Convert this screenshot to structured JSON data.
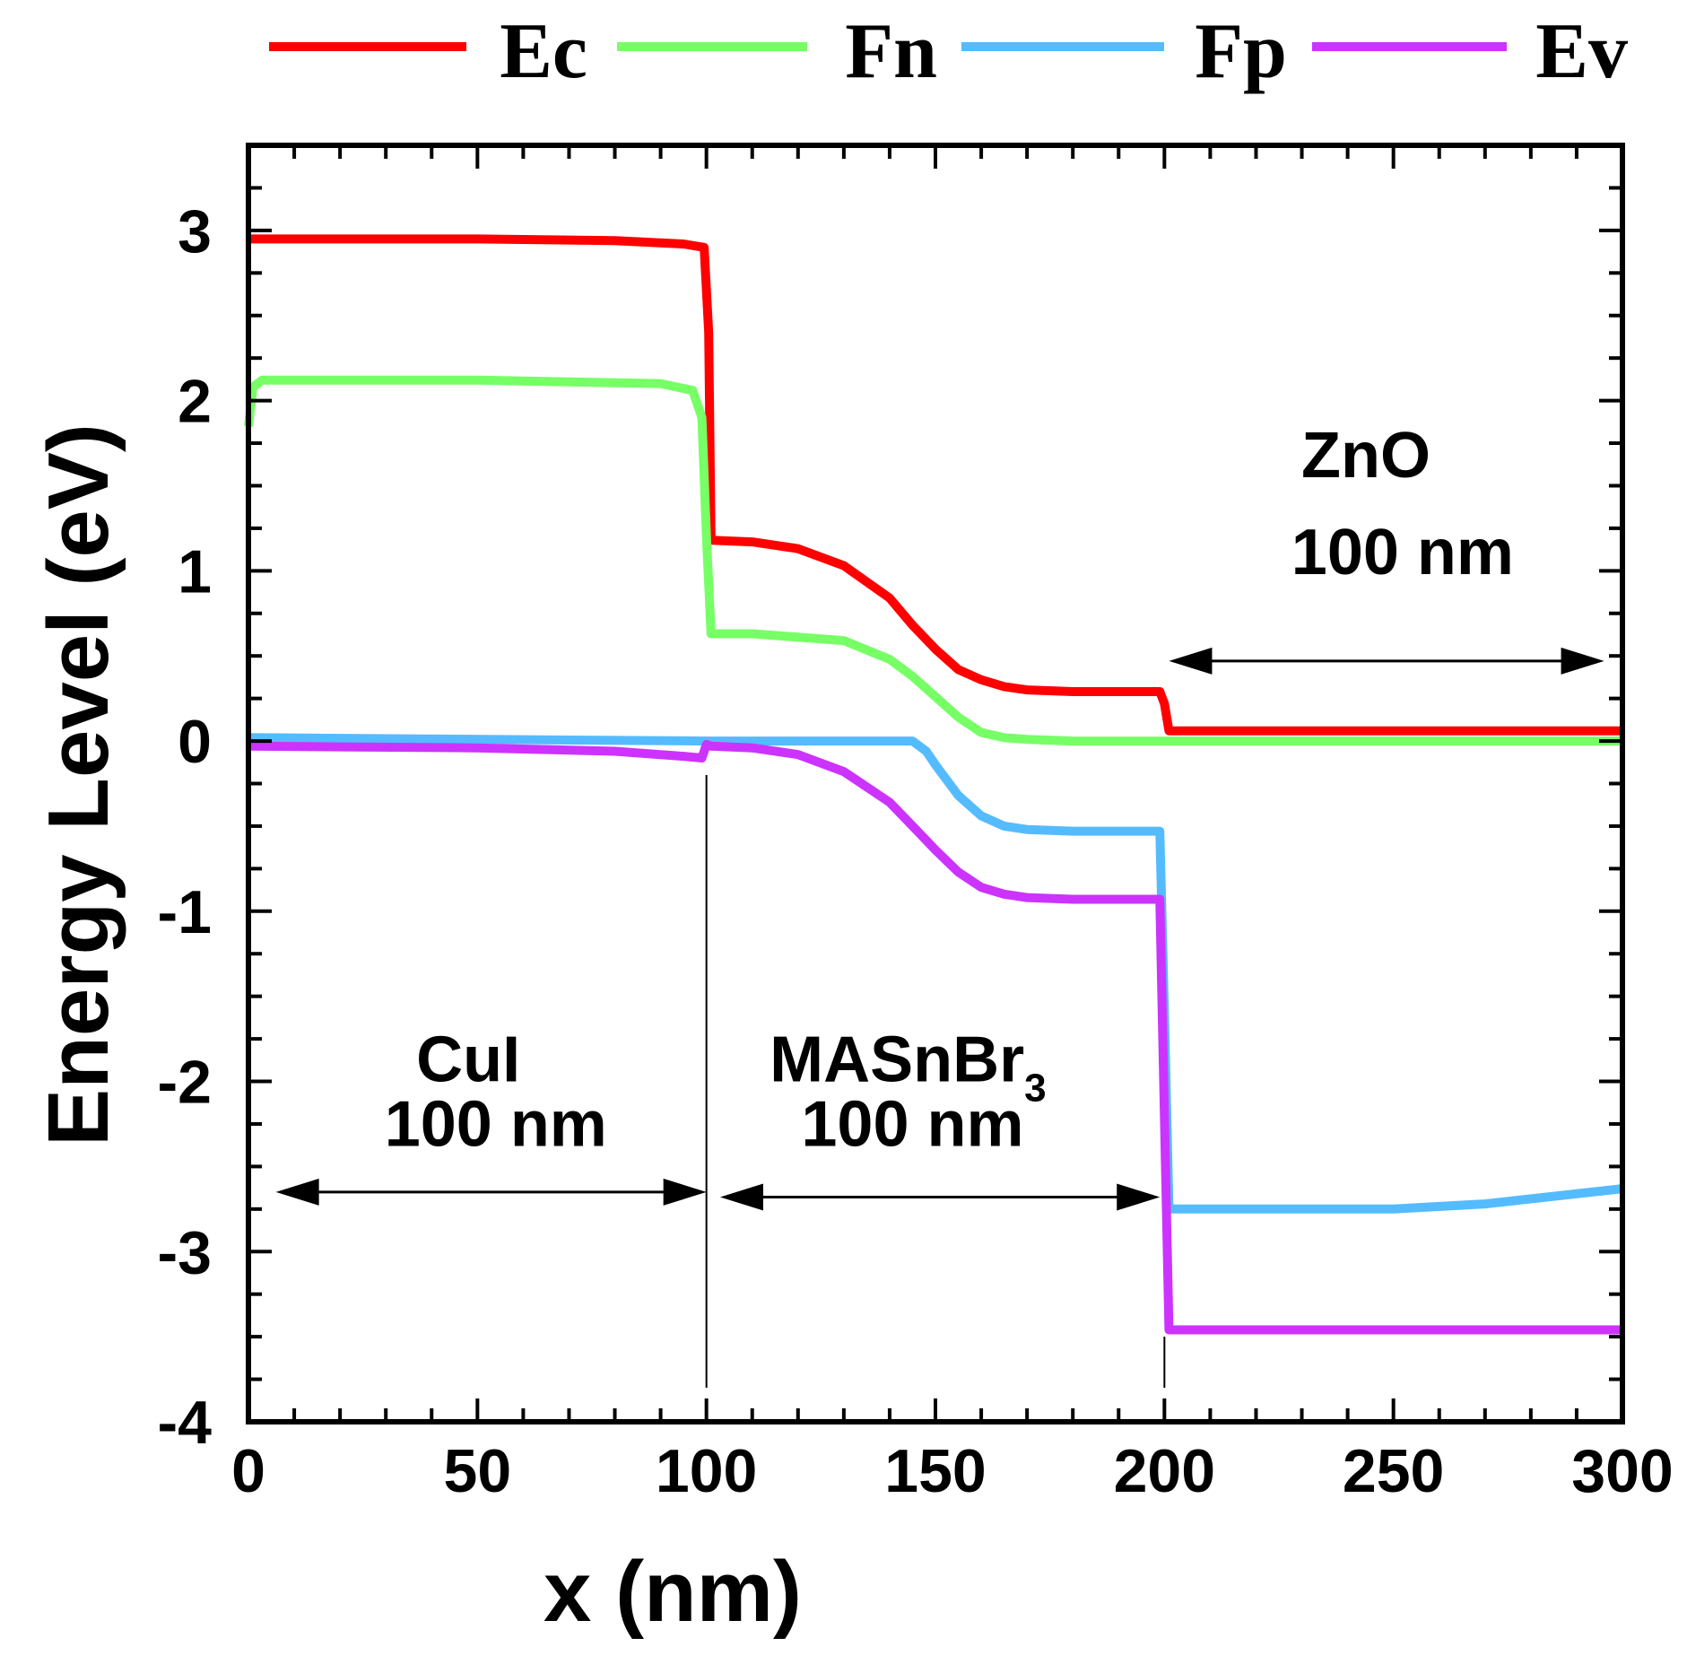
{
  "chart_data": {
    "type": "line",
    "title": "",
    "xlabel": "x (nm)",
    "ylabel": "Energy Level (eV)",
    "xlim": [
      0,
      300
    ],
    "ylim": [
      -4,
      3.5
    ],
    "xticks": [
      "0",
      "50",
      "100",
      "150",
      "200",
      "250",
      "300"
    ],
    "yticks": [
      "3",
      "2",
      "1",
      "0",
      "-1",
      "-2",
      "-3",
      "-4"
    ],
    "legend_position": "top",
    "series": [
      {
        "name": "Ec",
        "color": "#ff0000",
        "x": [
          0,
          50,
          80,
          95,
          99.5,
          100.5,
          101,
          110,
          120,
          130,
          140,
          145,
          150,
          155,
          160,
          165,
          170,
          180,
          190,
          199,
          200,
          201,
          202,
          250,
          300
        ],
        "y": [
          2.95,
          2.95,
          2.94,
          2.92,
          2.9,
          2.4,
          1.18,
          1.17,
          1.13,
          1.03,
          0.84,
          0.68,
          0.54,
          0.42,
          0.36,
          0.32,
          0.3,
          0.29,
          0.29,
          0.29,
          0.22,
          0.06,
          0.06,
          0.06,
          0.06
        ]
      },
      {
        "name": "Fn",
        "color": "#77ff66",
        "x": [
          0,
          1,
          3,
          50,
          90,
          97,
          99,
          100,
          101,
          110,
          130,
          140,
          145,
          150,
          155,
          160,
          165,
          170,
          180,
          200,
          250,
          300
        ],
        "y": [
          1.85,
          2.08,
          2.12,
          2.12,
          2.1,
          2.06,
          1.9,
          1.2,
          0.63,
          0.63,
          0.59,
          0.48,
          0.38,
          0.26,
          0.14,
          0.05,
          0.02,
          0.01,
          0.0,
          0.0,
          0.0,
          0.0
        ]
      },
      {
        "name": "Fp",
        "color": "#55bbff",
        "x": [
          0,
          100,
          145,
          148,
          150,
          155,
          160,
          165,
          170,
          180,
          199,
          200,
          201,
          250,
          270,
          300
        ],
        "y": [
          0.02,
          0.0,
          0.0,
          -0.06,
          -0.14,
          -0.32,
          -0.44,
          -0.5,
          -0.52,
          -0.53,
          -0.53,
          -1.6,
          -2.75,
          -2.75,
          -2.72,
          -2.63
        ]
      },
      {
        "name": "Ev",
        "color": "#cc33ff",
        "x": [
          0,
          50,
          80,
          95,
          99,
          100,
          101,
          110,
          120,
          130,
          140,
          145,
          150,
          155,
          160,
          165,
          170,
          180,
          190,
          199,
          200,
          201,
          250,
          300
        ],
        "y": [
          -0.03,
          -0.04,
          -0.06,
          -0.09,
          -0.1,
          -0.02,
          -0.03,
          -0.04,
          -0.08,
          -0.18,
          -0.36,
          -0.5,
          -0.64,
          -0.77,
          -0.86,
          -0.9,
          -0.92,
          -0.93,
          -0.93,
          -0.93,
          -2.2,
          -3.46,
          -3.46,
          -3.46
        ]
      }
    ],
    "annotations": [
      {
        "id": "cui",
        "text": "CuI",
        "x": 48,
        "y": -2.0
      },
      {
        "id": "cui-thk",
        "text": "100 nm",
        "x": 54,
        "y": -2.38
      },
      {
        "id": "masnbr3",
        "text": "MASnBr",
        "sub": "3",
        "x": 144,
        "y": -2.0
      },
      {
        "id": "masnbr3-thk",
        "text": "100 nm",
        "x": 145,
        "y": -2.38
      },
      {
        "id": "zno",
        "text": "ZnO",
        "x": 244,
        "y": 1.55
      },
      {
        "id": "zno-thk",
        "text": "100 nm",
        "x": 252,
        "y": 0.98
      }
    ],
    "arrows": [
      {
        "x1": 6,
        "x2": 100,
        "y": -2.65
      },
      {
        "x1": 103,
        "x2": 199,
        "y": -2.68
      },
      {
        "x1": 201,
        "x2": 296,
        "y": 0.47
      }
    ],
    "interfaces": [
      {
        "x": 100,
        "y1": -0.2,
        "y2": -3.8
      },
      {
        "x": 200,
        "y1": -3.5,
        "y2": -3.8
      }
    ]
  }
}
